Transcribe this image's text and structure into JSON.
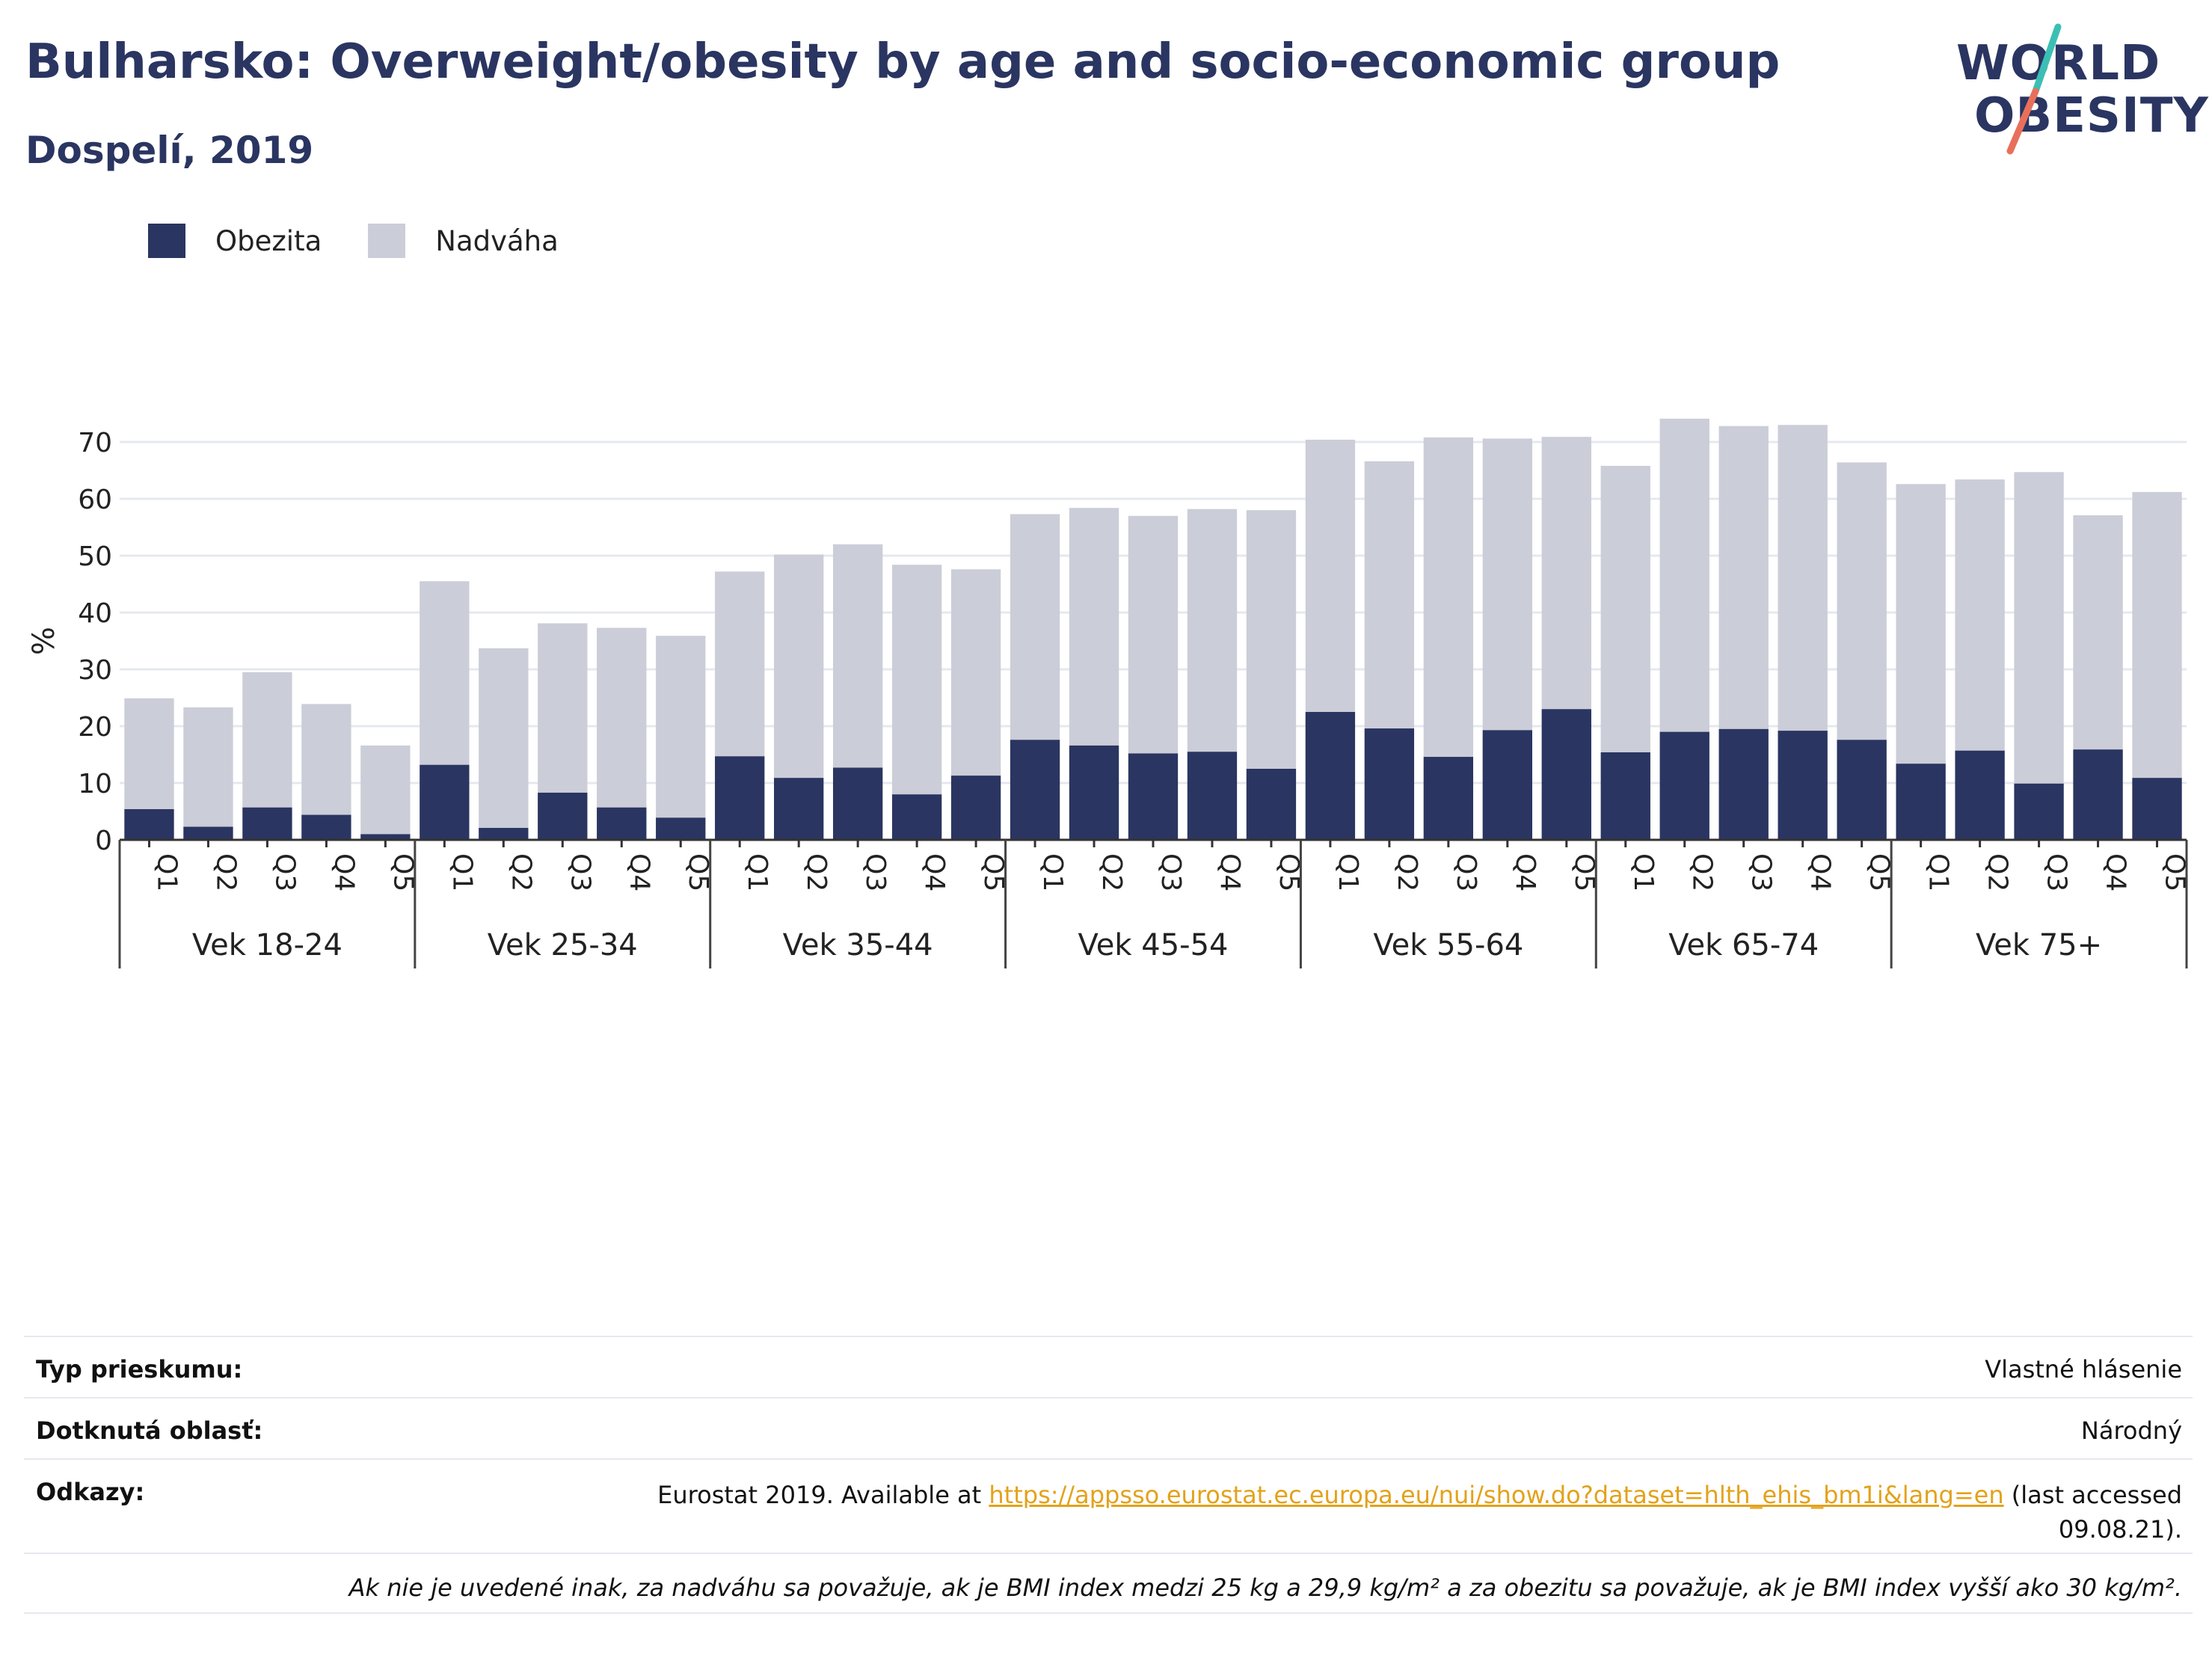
{
  "header": {
    "title": "Bulharsko: Overweight/obesity by age and socio-economic group",
    "subtitle": "Dospelí, 2019"
  },
  "logo": {
    "line1": "WORLD",
    "line2": "OBESITY"
  },
  "colors": {
    "obesity": "#2a3561",
    "overweight": "#cbcdd8",
    "accent_teal": "#3bbfb4",
    "accent_coral": "#e8705a",
    "link": "#e3a21a"
  },
  "chart_data": {
    "type": "bar",
    "stacked": true,
    "ylabel": "%",
    "ylim": [
      0,
      75
    ],
    "yticks": [
      0,
      10,
      20,
      30,
      40,
      50,
      60,
      70
    ],
    "grid": true,
    "legend_position": "top-left",
    "groups": [
      "Vek 18-24",
      "Vek 25-34",
      "Vek 35-44",
      "Vek 45-54",
      "Vek 55-64",
      "Vek 65-74",
      "Vek 75+"
    ],
    "sub_categories": [
      "Q1",
      "Q2",
      "Q3",
      "Q4",
      "Q5"
    ],
    "series": [
      {
        "name": "Obezita",
        "color": "#2a3561",
        "values": [
          5.4,
          2.3,
          5.7,
          4.4,
          1.0,
          13.2,
          2.1,
          8.3,
          5.7,
          3.9,
          14.7,
          10.9,
          12.7,
          8.0,
          11.3,
          17.6,
          16.6,
          15.2,
          15.5,
          12.5,
          22.5,
          19.6,
          14.6,
          19.3,
          23.0,
          15.4,
          19.0,
          19.5,
          19.2,
          17.6,
          13.4,
          15.7,
          9.9,
          15.9,
          10.9
        ]
      },
      {
        "name": "Nadváha",
        "color": "#cbcdd8",
        "values": [
          19.5,
          21.0,
          23.8,
          19.5,
          15.6,
          32.3,
          31.6,
          29.8,
          31.6,
          32.0,
          32.5,
          39.3,
          39.3,
          40.4,
          36.3,
          39.7,
          41.8,
          41.8,
          42.7,
          45.5,
          47.9,
          47.0,
          56.2,
          51.3,
          47.9,
          50.4,
          55.1,
          53.3,
          53.8,
          48.8,
          49.2,
          47.7,
          54.8,
          41.2,
          50.3
        ]
      }
    ]
  },
  "info": {
    "survey_type_label": "Typ prieskumu:",
    "survey_type_value": "Vlastné hlásenie",
    "area_label": "Dotknutá oblasť:",
    "area_value": "Národný",
    "refs_label": "Odkazy:",
    "refs_prefix": "Eurostat 2019. Available at ",
    "refs_link": "https://appsso.eurostat.ec.europa.eu/nui/show.do?dataset=hlth_ehis_bm1i&lang=en",
    "refs_suffix_1": " (last accessed",
    "refs_suffix_2": "09.08.21).",
    "note": "Ak nie je uvedené inak, za nadváhu sa považuje, ak je BMI index medzi 25 kg a 29,9 kg/m² a za obezitu sa považuje, ak je BMI index vyšší ako 30 kg/m²."
  }
}
